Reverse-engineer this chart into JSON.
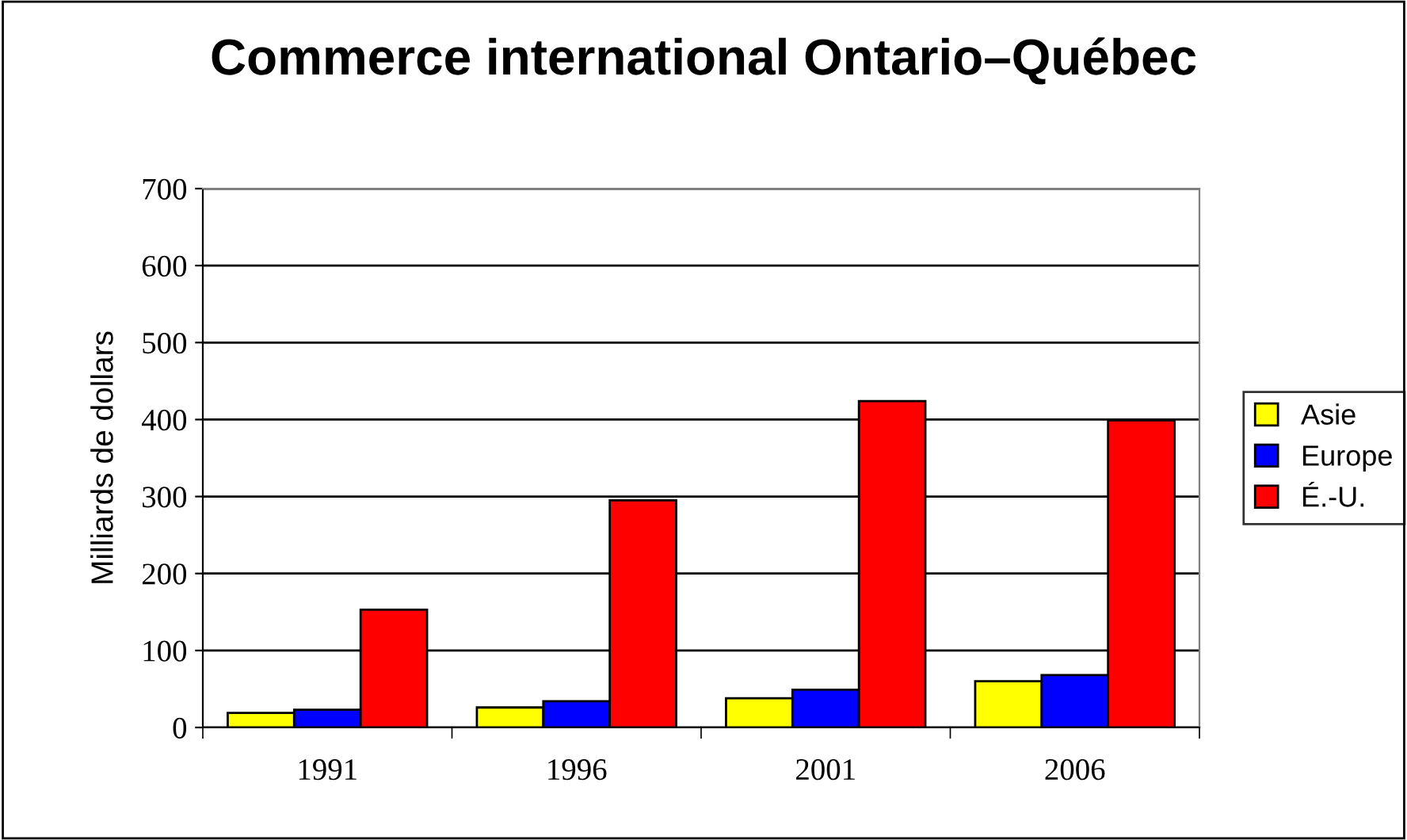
{
  "chart_data": {
    "type": "bar",
    "title": "Commerce international Ontario–Québec",
    "ylabel": "Milliards de dollars",
    "categories": [
      "1991",
      "1996",
      "2001",
      "2006"
    ],
    "series": [
      {
        "name": "Asie",
        "color": "#ffff00",
        "values": [
          19,
          26,
          38,
          60
        ]
      },
      {
        "name": "Europe",
        "color": "#0000ff",
        "values": [
          23,
          34,
          49,
          68
        ]
      },
      {
        "name": "É.-U.",
        "color": "#ff0000",
        "values": [
          153,
          295,
          424,
          399
        ]
      }
    ],
    "ylim": [
      0,
      700
    ],
    "yticks": [
      0,
      100,
      200,
      300,
      400,
      500,
      600,
      700
    ],
    "grid": "y",
    "legend": "right"
  }
}
